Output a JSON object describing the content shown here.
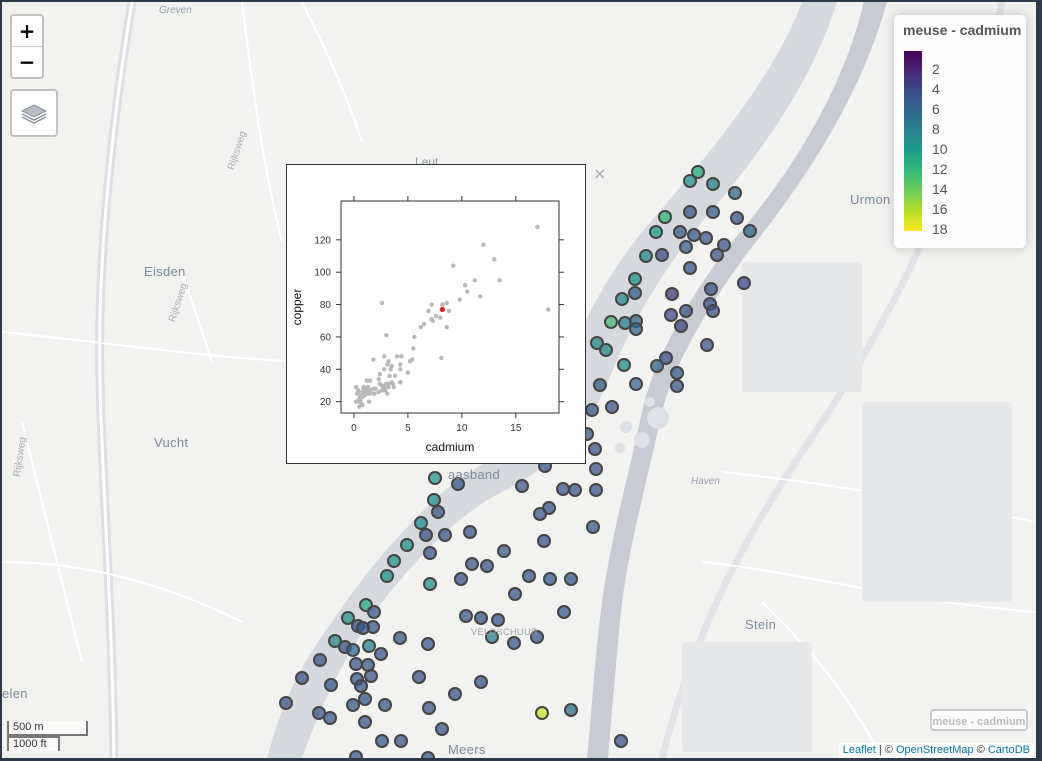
{
  "map": {
    "places": [
      {
        "key": "greven",
        "label": "Greven",
        "cls": "small",
        "x": 157,
        "y": 3
      },
      {
        "key": "leut",
        "label": "Leut",
        "cls": "med",
        "x": 413,
        "y": 153
      },
      {
        "key": "eisden",
        "label": "Eisden",
        "cls": "big",
        "x": 142,
        "y": 262
      },
      {
        "key": "urmond",
        "label": "Urmon",
        "cls": "big",
        "x": 848,
        "y": 190
      },
      {
        "key": "vucht",
        "label": "Vucht",
        "cls": "big",
        "x": 152,
        "y": 433
      },
      {
        "key": "maasband",
        "label": "aasband",
        "cls": "big",
        "x": 446,
        "y": 465
      },
      {
        "key": "haven",
        "label": "Haven",
        "cls": "small",
        "x": 689,
        "y": 474
      },
      {
        "key": "stein",
        "label": "Stein",
        "cls": "big",
        "x": 743,
        "y": 615
      },
      {
        "key": "veldschuur",
        "label": "VELDSCHUUR",
        "cls": "tiny",
        "x": 469,
        "y": 625
      },
      {
        "key": "elen",
        "label": "elen",
        "cls": "big",
        "x": 0,
        "y": 684
      },
      {
        "key": "meers",
        "label": "Meers",
        "cls": "big",
        "x": 446,
        "y": 740
      },
      {
        "key": "rijksweg1",
        "label": "Rijksweg",
        "cls": "road",
        "x": 224,
        "y": 166,
        "rot": -72
      },
      {
        "key": "rijksweg2",
        "label": "Rijksweg",
        "cls": "road",
        "x": 165,
        "y": 318,
        "rot": -72
      },
      {
        "key": "rijksweg3",
        "label": "Rijksweg",
        "cls": "road",
        "x": 10,
        "y": 474,
        "rot": -82
      }
    ]
  },
  "controls": {
    "zoom_in": "+",
    "zoom_out": "−",
    "layers_icon": "layers-icon"
  },
  "legend": {
    "title": "meuse - cadmium",
    "labels": [
      "2",
      "4",
      "6",
      "8",
      "10",
      "12",
      "14",
      "16",
      "18"
    ],
    "colors": [
      "#440154",
      "#482878",
      "#3e4a89",
      "#31688e",
      "#26828e",
      "#1f9e89",
      "#35b779",
      "#6ece58",
      "#b5de2b",
      "#fde725"
    ]
  },
  "points": [
    [
      698,
      172,
      11.2
    ],
    [
      690,
      181,
      9.5
    ],
    [
      713,
      184,
      8
    ],
    [
      735,
      193,
      6
    ],
    [
      665,
      217,
      12
    ],
    [
      690,
      212,
      5
    ],
    [
      713,
      212,
      5.5
    ],
    [
      737,
      218,
      5
    ],
    [
      656,
      232,
      10
    ],
    [
      680,
      232,
      5.5
    ],
    [
      694,
      235,
      5
    ],
    [
      706,
      238,
      5
    ],
    [
      750,
      231,
      6
    ],
    [
      724,
      245,
      5
    ],
    [
      686,
      247,
      5.5
    ],
    [
      662,
      255,
      4.5
    ],
    [
      646,
      256,
      8.5
    ],
    [
      717,
      255,
      5
    ],
    [
      690,
      268,
      5
    ],
    [
      635,
      279,
      9
    ],
    [
      744,
      283,
      4
    ],
    [
      672,
      294,
      3
    ],
    [
      711,
      289,
      5
    ],
    [
      622,
      299,
      8.5
    ],
    [
      635,
      293,
      5.5
    ],
    [
      710,
      304,
      5
    ],
    [
      686,
      311,
      5
    ],
    [
      671,
      315,
      4
    ],
    [
      611,
      322,
      12.5
    ],
    [
      625,
      323,
      8
    ],
    [
      636,
      321,
      6
    ],
    [
      713,
      311,
      4.5
    ],
    [
      636,
      329,
      6
    ],
    [
      681,
      326,
      4
    ],
    [
      597,
      343,
      8.5
    ],
    [
      606,
      350,
      8.5
    ],
    [
      707,
      345,
      5
    ],
    [
      666,
      358,
      5
    ],
    [
      624,
      365,
      8.5
    ],
    [
      657,
      366,
      6
    ],
    [
      677,
      373,
      5
    ],
    [
      636,
      384,
      6
    ],
    [
      600,
      385,
      5.5
    ],
    [
      677,
      386,
      5
    ],
    [
      592,
      410,
      5
    ],
    [
      612,
      407,
      5
    ],
    [
      587,
      434,
      5
    ],
    [
      595,
      449,
      5
    ],
    [
      596,
      469,
      5
    ],
    [
      545,
      466,
      5
    ],
    [
      563,
      489,
      5
    ],
    [
      575,
      490,
      5
    ],
    [
      596,
      490,
      5
    ],
    [
      522,
      486,
      5
    ],
    [
      458,
      484,
      5
    ],
    [
      435,
      478,
      9.5
    ],
    [
      434,
      500,
      9
    ],
    [
      438,
      512,
      5
    ],
    [
      549,
      508,
      5
    ],
    [
      540,
      514,
      5
    ],
    [
      593,
      527,
      5
    ],
    [
      421,
      523,
      9
    ],
    [
      470,
      532,
      5
    ],
    [
      426,
      535,
      5
    ],
    [
      445,
      535,
      5
    ],
    [
      544,
      541,
      5
    ],
    [
      407,
      545,
      9.5
    ],
    [
      430,
      553,
      5
    ],
    [
      504,
      551,
      5
    ],
    [
      472,
      564,
      5
    ],
    [
      487,
      566,
      5
    ],
    [
      394,
      561,
      9.5
    ],
    [
      387,
      576,
      9
    ],
    [
      461,
      579,
      5
    ],
    [
      529,
      576,
      5
    ],
    [
      550,
      579,
      5
    ],
    [
      571,
      579,
      5
    ],
    [
      430,
      584,
      9
    ],
    [
      515,
      594,
      5
    ],
    [
      366,
      605,
      11
    ],
    [
      374,
      612,
      5
    ],
    [
      348,
      618,
      9.5
    ],
    [
      466,
      616,
      5
    ],
    [
      481,
      618,
      5
    ],
    [
      564,
      612,
      5
    ],
    [
      498,
      620,
      5
    ],
    [
      358,
      626,
      5
    ],
    [
      373,
      627,
      5
    ],
    [
      363,
      628,
      5
    ],
    [
      492,
      637,
      8
    ],
    [
      400,
      638,
      5
    ],
    [
      428,
      644,
      5
    ],
    [
      514,
      643,
      5
    ],
    [
      537,
      637,
      5
    ],
    [
      335,
      641,
      8.5
    ],
    [
      345,
      647,
      5
    ],
    [
      369,
      646,
      8
    ],
    [
      353,
      650,
      6
    ],
    [
      381,
      654,
      5
    ],
    [
      320,
      660,
      5
    ],
    [
      356,
      664,
      5
    ],
    [
      368,
      665,
      5
    ],
    [
      371,
      676,
      5
    ],
    [
      419,
      677,
      5
    ],
    [
      302,
      678,
      5
    ],
    [
      357,
      679,
      5
    ],
    [
      331,
      685,
      5
    ],
    [
      361,
      686,
      5
    ],
    [
      481,
      682,
      5
    ],
    [
      455,
      694,
      5
    ],
    [
      365,
      699,
      5
    ],
    [
      286,
      703,
      5
    ],
    [
      353,
      705,
      5
    ],
    [
      385,
      705,
      5
    ],
    [
      429,
      708,
      5
    ],
    [
      542,
      713,
      16.5
    ],
    [
      571,
      710,
      6.5
    ],
    [
      319,
      713,
      5
    ],
    [
      330,
      718,
      5
    ],
    [
      365,
      722,
      5
    ],
    [
      442,
      729,
      5
    ],
    [
      382,
      741,
      5
    ],
    [
      401,
      741,
      5
    ],
    [
      621,
      741,
      5
    ],
    [
      356,
      757,
      5
    ],
    [
      428,
      758,
      5
    ]
  ],
  "popup": {
    "close_label": "×",
    "chart_data": {
      "type": "scatter",
      "xlabel": "cadmium",
      "ylabel": "copper",
      "xlim": [
        -1.2,
        19
      ],
      "ylim": [
        13,
        144
      ],
      "xticks": [
        0,
        5,
        10,
        15
      ],
      "yticks": [
        20,
        40,
        60,
        80,
        100,
        120
      ],
      "highlight": {
        "x": 8.2,
        "y": 77
      },
      "points": [
        [
          11.7,
          85
        ],
        [
          8.6,
          81
        ],
        [
          6.5,
          68
        ],
        [
          2.6,
          81
        ],
        [
          2.8,
          48
        ],
        [
          3.0,
          61
        ],
        [
          3.2,
          31
        ],
        [
          2.8,
          29
        ],
        [
          2.4,
          37
        ],
        [
          2.7,
          29
        ],
        [
          4.3,
          40
        ],
        [
          4.4,
          48
        ],
        [
          5.5,
          53
        ],
        [
          3.8,
          36
        ],
        [
          3.7,
          29
        ],
        [
          3.2,
          29
        ],
        [
          2.6,
          27
        ],
        [
          2.4,
          31
        ],
        [
          3.1,
          25
        ],
        [
          4.3,
          32
        ],
        [
          5.2,
          45
        ],
        [
          4.0,
          48
        ],
        [
          3.5,
          42
        ],
        [
          3.3,
          36
        ],
        [
          4.3,
          43
        ],
        [
          3.5,
          32
        ],
        [
          3.6,
          31
        ],
        [
          5.0,
          38
        ],
        [
          3.3,
          36
        ],
        [
          2.9,
          27
        ],
        [
          2.7,
          27
        ],
        [
          3.1,
          31
        ],
        [
          2.9,
          30
        ],
        [
          1.0,
          28
        ],
        [
          0.8,
          24
        ],
        [
          1.1,
          26
        ],
        [
          1.8,
          25
        ],
        [
          2.3,
          26
        ],
        [
          2.6,
          30
        ],
        [
          1.2,
          33
        ],
        [
          1.3,
          29
        ],
        [
          0.8,
          24
        ],
        [
          1.0,
          26
        ],
        [
          1.4,
          20
        ],
        [
          1.4,
          25
        ],
        [
          1.5,
          27
        ],
        [
          1.2,
          25
        ],
        [
          1.8,
          28
        ],
        [
          2.0,
          28
        ],
        [
          2.4,
          31
        ],
        [
          1.9,
          25
        ],
        [
          1.2,
          26
        ],
        [
          1.0,
          28
        ],
        [
          1.0,
          25
        ],
        [
          1.0,
          24
        ],
        [
          0.8,
          23
        ],
        [
          1.0,
          26
        ],
        [
          0.7,
          24
        ],
        [
          0.6,
          23
        ],
        [
          0.6,
          21
        ],
        [
          0.5,
          20
        ],
        [
          0.6,
          20
        ],
        [
          0.5,
          17
        ],
        [
          0.5,
          22
        ],
        [
          0.6,
          20
        ],
        [
          0.8,
          18
        ],
        [
          0.4,
          27
        ],
        [
          0.4,
          26
        ],
        [
          0.9,
          29
        ],
        [
          0.9,
          28
        ],
        [
          0.2,
          29
        ],
        [
          0.5,
          20
        ],
        [
          1.5,
          33
        ],
        [
          2.8,
          40
        ],
        [
          3.0,
          31
        ],
        [
          3.4,
          40
        ],
        [
          3.2,
          45
        ],
        [
          3.1,
          43
        ],
        [
          2.3,
          34
        ],
        [
          1.8,
          46
        ],
        [
          17.0,
          128
        ],
        [
          12.0,
          117
        ],
        [
          9.2,
          104
        ],
        [
          13.0,
          108
        ],
        [
          11.2,
          95
        ],
        [
          10.3,
          92
        ],
        [
          10.5,
          88
        ],
        [
          13.5,
          95
        ],
        [
          8.8,
          76
        ],
        [
          9.8,
          83
        ],
        [
          8.2,
          80
        ],
        [
          7.6,
          73
        ],
        [
          7.2,
          80
        ],
        [
          7.3,
          70
        ],
        [
          8.0,
          72
        ],
        [
          6.9,
          76
        ],
        [
          8.6,
          66
        ],
        [
          6.2,
          66
        ],
        [
          5.6,
          60
        ],
        [
          7.2,
          71
        ],
        [
          18.0,
          77
        ],
        [
          8.1,
          47
        ],
        [
          5.4,
          46
        ],
        [
          4.3,
          32
        ],
        [
          1.2,
          26
        ],
        [
          1.2,
          28
        ],
        [
          0.8,
          26
        ],
        [
          0.2,
          20
        ],
        [
          0.3,
          25
        ],
        [
          1.0,
          28
        ]
      ]
    }
  },
  "scale": {
    "metric": "500 m",
    "imperial": "1000 ft"
  },
  "minilegend": "meuse - cadmium",
  "attribution": {
    "leaflet": "Leaflet",
    "sep1": " | © ",
    "osm": "OpenStreetMap",
    "sep2": " © ",
    "carto": "CartoDB"
  }
}
